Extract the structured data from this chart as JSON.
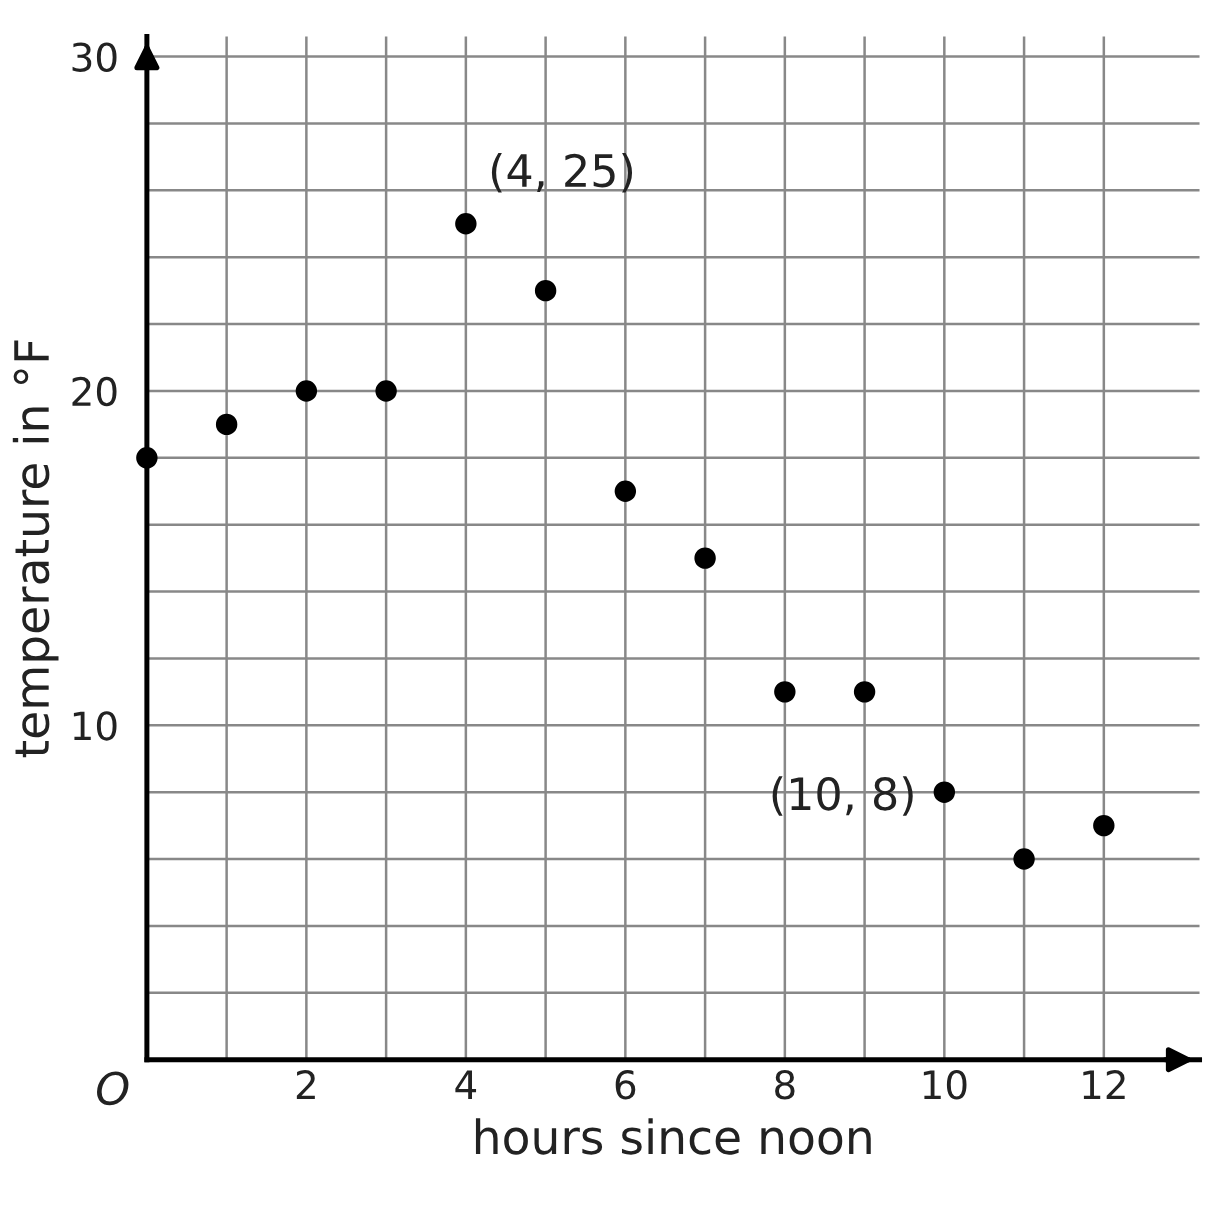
{
  "chart_data": {
    "type": "scatter",
    "xlabel": "hours since noon",
    "ylabel": "temperature in °F",
    "x": [
      0,
      1,
      2,
      3,
      4,
      5,
      6,
      7,
      8,
      9,
      10,
      11,
      12
    ],
    "values": [
      18,
      19,
      20,
      20,
      25,
      23,
      17,
      15,
      11,
      11,
      8,
      6,
      7
    ],
    "color": "#000000",
    "marker": "circle",
    "grid": true,
    "xlim": [
      0,
      13.2
    ],
    "ylim": [
      0,
      30.6
    ],
    "xticks": [
      {
        "value": 1,
        "label": null
      },
      2,
      {
        "value": 3,
        "label": null
      },
      4,
      {
        "value": 5,
        "label": null
      },
      6,
      {
        "value": 7,
        "label": null
      },
      8,
      {
        "value": 9,
        "label": null
      },
      10,
      {
        "value": 11,
        "label": null
      },
      12
    ],
    "yticks": [
      {
        "value": 2,
        "label": null
      },
      {
        "value": 4,
        "label": null
      },
      {
        "value": 6,
        "label": null
      },
      {
        "value": 8,
        "label": null
      },
      10,
      {
        "value": 12,
        "label": null
      },
      {
        "value": 14,
        "label": null
      },
      {
        "value": 16,
        "label": null
      },
      {
        "value": 18,
        "label": null
      },
      20,
      {
        "value": 22,
        "label": null
      },
      {
        "value": 24,
        "label": null
      },
      {
        "value": 26,
        "label": null
      },
      {
        "value": 28,
        "label": null
      },
      30
    ],
    "annotations": [
      {
        "text": "(4, 25)",
        "x": 4,
        "y": 25
      },
      {
        "text": "(10, 8)",
        "x": 10,
        "y": 8
      },
      "O"
    ]
  }
}
